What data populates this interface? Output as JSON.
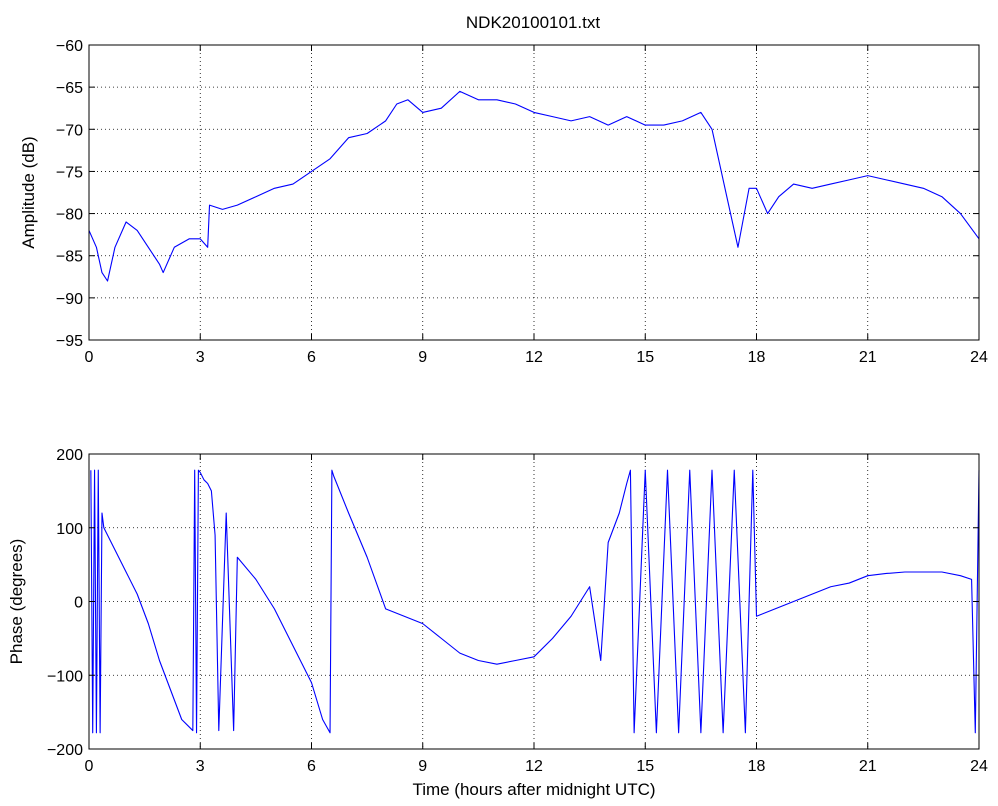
{
  "figure": {
    "title": "NDK20100101.txt"
  },
  "chart_data": [
    {
      "type": "line",
      "title": "NDK20100101.txt",
      "xlabel": "",
      "ylabel": "Amplitude (dB)",
      "xlim": [
        0,
        24
      ],
      "ylim": [
        -95,
        -60
      ],
      "xticks": [
        0,
        3,
        6,
        9,
        12,
        15,
        18,
        21,
        24
      ],
      "yticks": [
        -95,
        -90,
        -85,
        -80,
        -75,
        -70,
        -65,
        -60
      ],
      "grid": true,
      "color": "#0000ff",
      "series": [
        {
          "x": [
            0,
            0.2,
            0.35,
            0.5,
            0.7,
            1.0,
            1.3,
            1.6,
            1.9,
            2.0,
            2.3,
            2.7,
            3.0,
            3.2,
            3.25,
            3.6,
            4.0,
            4.5,
            5.0,
            5.5,
            6.0,
            6.5,
            7.0,
            7.5,
            8.0,
            8.3,
            8.6,
            9.0,
            9.5,
            10.0,
            10.5,
            11.0,
            11.5,
            12.0,
            12.5,
            13.0,
            13.5,
            14.0,
            14.5,
            15.0,
            15.5,
            16.0,
            16.5,
            16.8,
            17.0,
            17.2,
            17.5,
            17.8,
            18.0,
            18.3,
            18.6,
            19.0,
            19.5,
            20.0,
            20.5,
            21.0,
            21.5,
            22.0,
            22.5,
            23.0,
            23.5,
            24.0
          ],
          "y": [
            -82,
            -84,
            -87,
            -88,
            -84,
            -81,
            -82,
            -84,
            -86,
            -87,
            -84,
            -83,
            -83,
            -84,
            -79,
            -79.5,
            -79,
            -78,
            -77,
            -76.5,
            -75,
            -73.5,
            -71,
            -70.5,
            -69,
            -67,
            -66.5,
            -68,
            -67.5,
            -65.5,
            -66.5,
            -66.5,
            -67,
            -68,
            -68.5,
            -69,
            -68.5,
            -69.5,
            -68.5,
            -69.5,
            -69.5,
            -69,
            -68,
            -70,
            -74,
            -78,
            -84,
            -77,
            -77,
            -80,
            -78,
            -76.5,
            -77,
            -76.5,
            -76,
            -75.5,
            -76,
            -76.5,
            -77,
            -78,
            -80,
            -83
          ]
        }
      ]
    },
    {
      "type": "line",
      "title": "",
      "xlabel": "Time (hours after midnight UTC)",
      "ylabel": "Phase (degrees)",
      "xlim": [
        0,
        24
      ],
      "ylim": [
        -200,
        200
      ],
      "xticks": [
        0,
        3,
        6,
        9,
        12,
        15,
        18,
        21,
        24
      ],
      "yticks": [
        -200,
        -100,
        0,
        100,
        200
      ],
      "grid": true,
      "color": "#0000ff",
      "series": [
        {
          "x": [
            0.05,
            0.1,
            0.15,
            0.2,
            0.25,
            0.3,
            0.35,
            0.4,
            0.5,
            0.7,
            1.0,
            1.3,
            1.6,
            1.9,
            2.2,
            2.5,
            2.8,
            2.85,
            2.9,
            2.95,
            3.0,
            3.1,
            3.2,
            3.3,
            3.4,
            3.5,
            3.7,
            3.9,
            4.0,
            4.5,
            5.0,
            5.5,
            6.0,
            6.3,
            6.5,
            6.55,
            6.6,
            7.0,
            7.5,
            8.0,
            8.5,
            9.0,
            9.5,
            10.0,
            10.5,
            11.0,
            11.5,
            12.0,
            12.5,
            13.0,
            13.5,
            13.8,
            14.0,
            14.3,
            14.5,
            14.6,
            14.7,
            15.0,
            15.3,
            15.6,
            15.9,
            16.2,
            16.5,
            16.8,
            17.1,
            17.4,
            17.7,
            17.9,
            18.0,
            18.5,
            19.0,
            19.5,
            20.0,
            20.5,
            21.0,
            21.5,
            22.0,
            22.5,
            23.0,
            23.5,
            23.8,
            23.9,
            24.0
          ],
          "y": [
            178,
            -178,
            178,
            -178,
            178,
            -178,
            120,
            100,
            90,
            70,
            40,
            10,
            -30,
            -80,
            -120,
            -160,
            -175,
            178,
            -178,
            178,
            175,
            165,
            160,
            150,
            90,
            -175,
            120,
            -175,
            60,
            30,
            -10,
            -60,
            -110,
            -160,
            -178,
            178,
            170,
            120,
            60,
            -10,
            -20,
            -30,
            -50,
            -70,
            -80,
            -85,
            -80,
            -75,
            -50,
            -20,
            20,
            -80,
            80,
            120,
            160,
            178,
            -178,
            178,
            -178,
            178,
            -178,
            178,
            -178,
            178,
            -178,
            178,
            -178,
            178,
            -20,
            -10,
            0,
            10,
            20,
            25,
            35,
            38,
            40,
            40,
            40,
            35,
            30,
            -178,
            178
          ]
        }
      ]
    }
  ]
}
